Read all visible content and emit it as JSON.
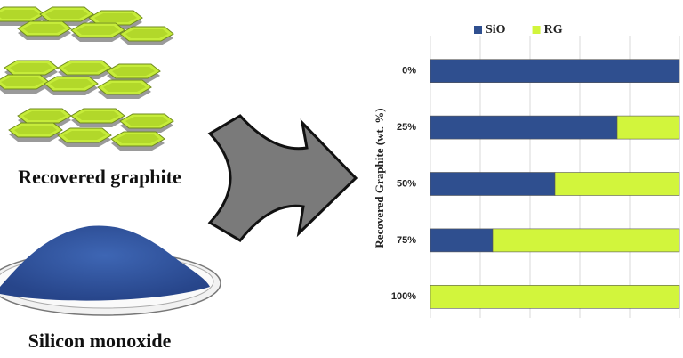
{
  "chart_data": {
    "type": "bar",
    "orientation": "horizontal",
    "stacked": true,
    "categories": [
      "0%",
      "25%",
      "50%",
      "75%",
      "100%"
    ],
    "series": [
      {
        "name": "SiO",
        "color": "#2f4f8f",
        "values": [
          100,
          75,
          50,
          25,
          0
        ]
      },
      {
        "name": "RG",
        "color": "#d2f53c",
        "values": [
          0,
          25,
          50,
          75,
          100
        ]
      }
    ],
    "y_label": "Recovered Graphite (wt. %)",
    "xlim": [
      0,
      100
    ],
    "xticks": [
      0,
      20,
      40,
      60,
      80,
      100
    ],
    "grid": true,
    "legend": "top"
  },
  "labels": {
    "graphite": "Recovered graphite",
    "silicon": "Silicon monoxide"
  }
}
